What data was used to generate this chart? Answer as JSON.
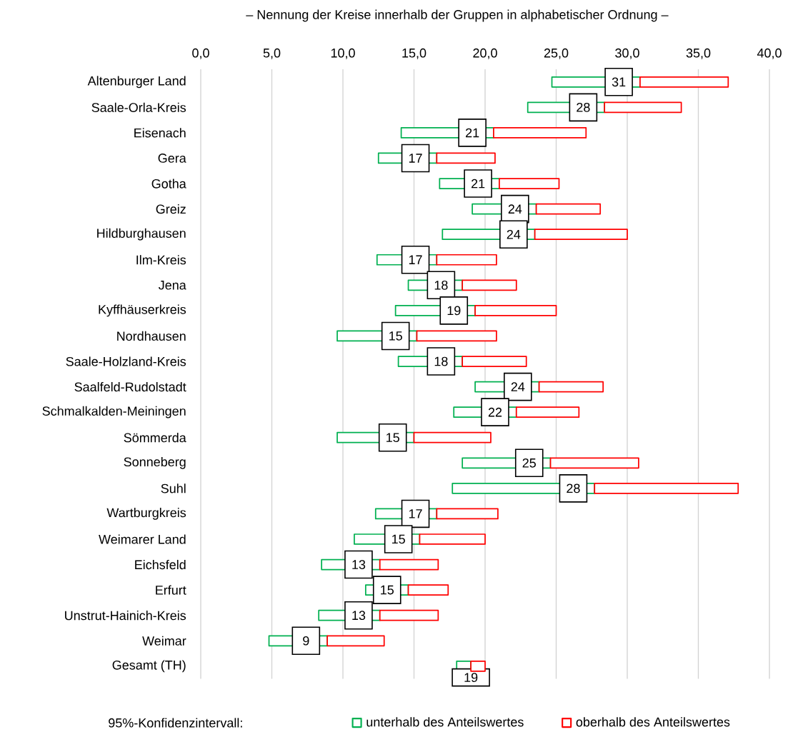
{
  "chart_data": {
    "type": "bar",
    "orientation": "horizontal",
    "title": "– Nennung der Kreise innerhalb der Gruppen in alphabetischer Ordnung –",
    "categories": [
      "Altenburger Land",
      "Saale-Orla-Kreis",
      "Eisenach",
      "Gera",
      "Gotha",
      "Greiz",
      "Hildburghausen",
      "Ilm-Kreis",
      "Jena",
      "Kyffhäuserkreis",
      "Nordhausen",
      "Saale-Holzland-Kreis",
      "Saalfeld-Rudolstadt",
      "Schmalkalden-Meiningen",
      "Sömmerda",
      "Sonneberg",
      "Suhl",
      "Wartburgkreis",
      "Weimarer Land",
      "Eichsfeld",
      "Erfurt",
      "Unstrut-Hainich-Kreis",
      "Weimar",
      "Gesamt (TH)"
    ],
    "series": [
      {
        "name": "unterhalb des Anteilswertes",
        "color": "#00b050",
        "value_labels": [
          "31",
          "28",
          "21",
          "17",
          "21",
          "24",
          "24",
          "17",
          "18",
          "19",
          "15",
          "18",
          "24",
          "22",
          "15",
          "25",
          "28",
          "17",
          "15",
          "13",
          "15",
          "13",
          "9",
          "19"
        ],
        "base": [
          24.7,
          23.0,
          14.1,
          12.5,
          16.8,
          19.1,
          17.0,
          12.4,
          14.6,
          13.7,
          9.6,
          13.9,
          19.3,
          17.8,
          9.6,
          18.4,
          17.7,
          12.3,
          10.8,
          8.5,
          11.6,
          8.3,
          4.8,
          18.0
        ],
        "values": [
          6.2,
          5.4,
          6.5,
          4.1,
          4.2,
          4.5,
          6.5,
          4.2,
          3.8,
          5.6,
          5.6,
          4.5,
          4.5,
          4.4,
          5.4,
          6.2,
          10.0,
          4.3,
          4.6,
          4.1,
          3.0,
          4.3,
          4.1,
          1.0
        ]
      },
      {
        "name": "oberhalb des Anteilswertes",
        "color": "#ff0000",
        "base": [
          30.9,
          28.4,
          20.6,
          16.6,
          21.0,
          23.6,
          23.5,
          16.6,
          18.4,
          19.3,
          15.2,
          18.4,
          23.8,
          22.2,
          15.0,
          24.6,
          27.7,
          16.6,
          15.4,
          12.6,
          14.6,
          12.6,
          8.9,
          19.0
        ],
        "values": [
          6.2,
          5.4,
          6.5,
          4.1,
          4.2,
          4.5,
          6.5,
          4.2,
          3.8,
          5.7,
          5.6,
          4.5,
          4.5,
          4.4,
          5.4,
          6.2,
          10.1,
          4.3,
          4.6,
          4.1,
          2.8,
          4.1,
          4.0,
          1.0
        ]
      }
    ],
    "xlim": [
      0,
      40
    ],
    "xticks": [
      {
        "value": 0,
        "label": "0,0"
      },
      {
        "value": 5,
        "label": "5,0"
      },
      {
        "value": 10,
        "label": "10,0"
      },
      {
        "value": 15,
        "label": "15,0"
      },
      {
        "value": 20,
        "label": "20,0"
      },
      {
        "value": 25,
        "label": "25,0"
      },
      {
        "value": 30,
        "label": "30,0"
      },
      {
        "value": 35,
        "label": "35,0"
      },
      {
        "value": 40,
        "label": "40,0"
      }
    ],
    "grid": "x",
    "legend": "bottom",
    "legend_title": "95%-Konfidenzintervall:"
  }
}
